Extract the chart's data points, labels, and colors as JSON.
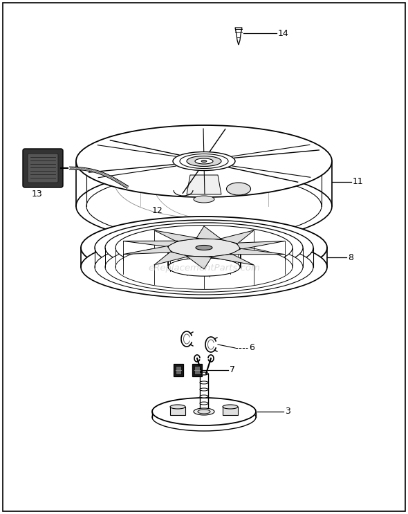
{
  "background_color": "#ffffff",
  "border_color": "#000000",
  "watermark": "eReplacementParts.com",
  "watermark_color": "#bbbbbb",
  "label_color": "#000000",
  "label_fontsize": 9,
  "fig_width": 5.9,
  "fig_height": 7.43,
  "dpi": 100
}
